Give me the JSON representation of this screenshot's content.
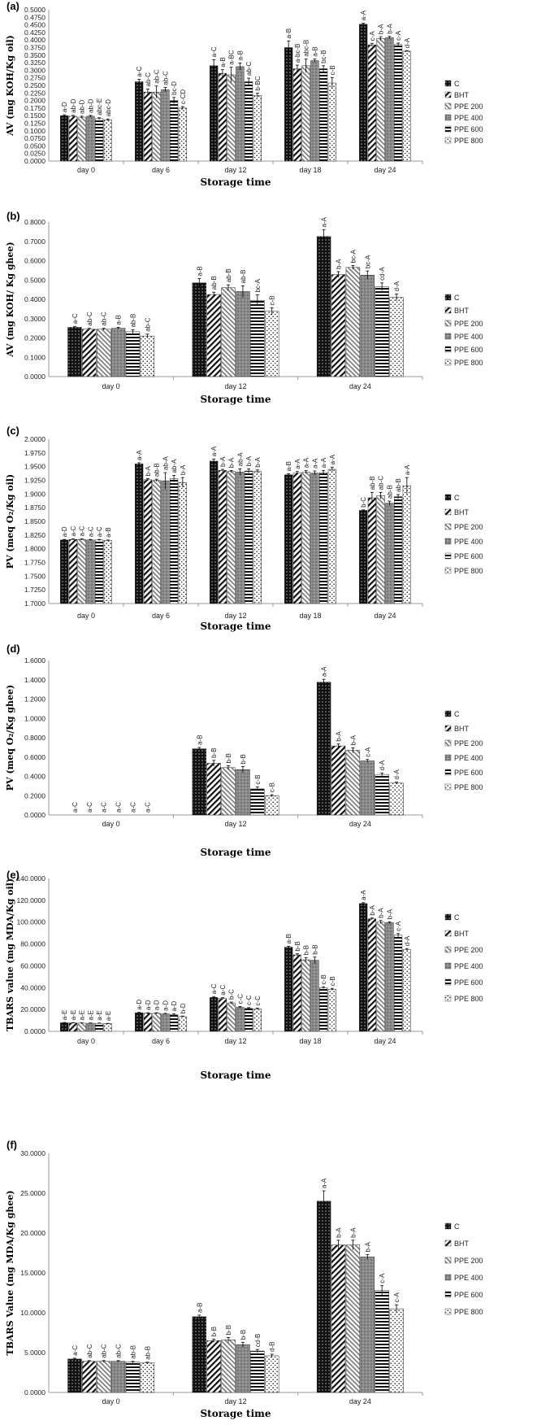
{
  "legend": [
    "C",
    "BHT",
    "PPE 200",
    "PPE 400",
    "PPE 600",
    "PPE 800"
  ],
  "chart_data": [
    {
      "panel": "(a)",
      "type": "bar",
      "ylabel": "AV (mg KOH/Kg oil)",
      "xlabel": "Storage time",
      "categories": [
        "day 0",
        "day 6",
        "day 12",
        "day 18",
        "day 24"
      ],
      "ylim": [
        0,
        0.5
      ],
      "ystep": 0.025,
      "decimals": 4,
      "series": [
        {
          "name": "C",
          "values": [
            0.15,
            0.262,
            0.315,
            0.375,
            0.452
          ],
          "err": [
            0.003,
            0.008,
            0.02,
            0.022,
            0.004
          ],
          "labels": [
            "a-D",
            "a-C",
            "a-C",
            "a-B",
            "a-A"
          ]
        },
        {
          "name": "BHT",
          "values": [
            0.148,
            0.228,
            0.29,
            0.305,
            0.384
          ],
          "err": [
            0.003,
            0.01,
            0.012,
            0.012,
            0.005
          ],
          "labels": [
            "ab-D",
            "ab-C",
            "a-B",
            "a-bc-B",
            "c-A"
          ]
        },
        {
          "name": "PPE 200",
          "values": [
            0.145,
            0.228,
            0.285,
            0.315,
            0.405
          ],
          "err": [
            0.003,
            0.02,
            0.025,
            0.022,
            0.006
          ],
          "labels": [
            "ab-D",
            "ab-C",
            "a-BC",
            "abc-B",
            "b-A"
          ]
        },
        {
          "name": "PPE 400",
          "values": [
            0.148,
            0.236,
            0.312,
            0.332,
            0.408
          ],
          "err": [
            0.003,
            0.007,
            0.012,
            0.005,
            0.004
          ],
          "labels": [
            "ab-D",
            "ab-C",
            "a-B",
            "a-B",
            "b-A"
          ]
        },
        {
          "name": "PPE 600",
          "values": [
            0.14,
            0.2,
            0.262,
            0.305,
            0.385
          ],
          "err": [
            0.003,
            0.01,
            0.012,
            0.01,
            0.005
          ],
          "labels": [
            "abc-E",
            "bc-D",
            "ab-C",
            "bc-B",
            "c-A"
          ]
        },
        {
          "name": "PPE 800",
          "values": [
            0.136,
            0.175,
            0.217,
            0.258,
            0.363
          ],
          "err": [
            0.003,
            0.005,
            0.007,
            0.018,
            0.002
          ],
          "labels": [
            "abc-D",
            "c-CD",
            "b-BC",
            "c-B",
            "d-A"
          ]
        }
      ]
    },
    {
      "panel": "(b)",
      "type": "bar",
      "ylabel": "AV (mg KOH/ Kg ghee)",
      "xlabel": "Storage time",
      "categories": [
        "day 0",
        "day 12",
        "day 24"
      ],
      "ylim": [
        0,
        0.8
      ],
      "ystep": 0.1,
      "decimals": 4,
      "series": [
        {
          "name": "C",
          "values": [
            0.255,
            0.485,
            0.725
          ],
          "err": [
            0.005,
            0.022,
            0.035
          ],
          "labels": [
            "a-C",
            "a-B",
            "a-A"
          ]
        },
        {
          "name": "BHT",
          "values": [
            0.245,
            0.425,
            0.528
          ],
          "err": [
            0.005,
            0.012,
            0.015
          ],
          "labels": [
            "ab-C",
            "ab-B",
            "b-A"
          ]
        },
        {
          "name": "PPE 200",
          "values": [
            0.245,
            0.46,
            0.565
          ],
          "err": [
            0.005,
            0.015,
            0.01
          ],
          "labels": [
            "ab-C",
            "ab-B",
            "bc-A"
          ]
        },
        {
          "name": "PPE 400",
          "values": [
            0.25,
            0.44,
            0.525
          ],
          "err": [
            0.005,
            0.03,
            0.022
          ],
          "labels": [
            "a-B",
            "ab-B",
            "bc-A"
          ]
        },
        {
          "name": "PPE 600",
          "values": [
            0.232,
            0.395,
            0.465
          ],
          "err": [
            0.01,
            0.028,
            0.02
          ],
          "labels": [
            "ab-B",
            "bc-A",
            "cd-A"
          ]
        },
        {
          "name": "PPE 800",
          "values": [
            0.21,
            0.338,
            0.41
          ],
          "err": [
            0.01,
            0.018,
            0.018
          ],
          "labels": [
            "ab-C",
            "c-B",
            "d-A"
          ]
        }
      ]
    },
    {
      "panel": "(c)",
      "type": "bar",
      "ylabel": "PV (meq O₂/Kg oil)",
      "xlabel": "Storage time",
      "categories": [
        "day 0",
        "day 6",
        "day 12",
        "day 18",
        "day 24"
      ],
      "ylim": [
        1.7,
        2.0
      ],
      "ystep": 0.025,
      "decimals": 4,
      "series": [
        {
          "name": "C",
          "values": [
            1.816,
            1.955,
            1.96,
            1.935,
            1.87
          ],
          "err": [
            0.001,
            0.002,
            0.004,
            0.002,
            0.001
          ],
          "labels": [
            "a-D",
            "a-A",
            "a-A",
            "a-B",
            "b-C"
          ]
        },
        {
          "name": "BHT",
          "values": [
            1.817,
            1.926,
            1.943,
            1.938,
            1.893
          ],
          "err": [
            0.001,
            0.002,
            0.002,
            0.003,
            0.01
          ],
          "labels": [
            "a-C",
            "b-A",
            "b-A",
            "a-A",
            "ab-B"
          ]
        },
        {
          "name": "PPE 200",
          "values": [
            1.817,
            1.925,
            1.941,
            1.94,
            1.897
          ],
          "err": [
            0.001,
            0.002,
            0.002,
            0.003,
            0.006
          ],
          "labels": [
            "a-C",
            "ab-B",
            "b-A",
            "a-A",
            "ab-C"
          ]
        },
        {
          "name": "PPE 400",
          "values": [
            1.816,
            1.924,
            1.94,
            1.938,
            1.883
          ],
          "err": [
            0.001,
            0.015,
            0.006,
            0.004,
            0.004
          ],
          "labels": [
            "a-C",
            "ab-A",
            "ab-A",
            "a-A",
            "ab-B"
          ]
        },
        {
          "name": "PPE 600",
          "values": [
            1.816,
            1.928,
            1.942,
            1.939,
            1.895
          ],
          "err": [
            0.001,
            0.006,
            0.004,
            0.004,
            0.004
          ],
          "labels": [
            "a-C",
            "ab-A",
            "b-A",
            "a-A",
            "ab-B"
          ]
        },
        {
          "name": "PPE 800",
          "values": [
            1.815,
            1.921,
            1.941,
            1.945,
            1.915
          ],
          "err": [
            0.001,
            0.009,
            0.003,
            0.004,
            0.015
          ],
          "labels": [
            "a-B",
            "b-A",
            "b-A",
            "a-A",
            "a-A"
          ]
        }
      ]
    },
    {
      "panel": "(d)",
      "type": "bar",
      "ylabel": "PV (meq O₂/Kg ghee)",
      "xlabel": "Storage time",
      "categories": [
        "day 0",
        "day 12",
        "day 24"
      ],
      "ylim": [
        0,
        1.6
      ],
      "ystep": 0.2,
      "decimals": 4,
      "series": [
        {
          "name": "C",
          "values": [
            0,
            0.685,
            1.375
          ],
          "err": [
            0,
            0.015,
            0.03
          ],
          "labels": [
            "a-C",
            "a-B",
            "a-A"
          ]
        },
        {
          "name": "BHT",
          "values": [
            0,
            0.535,
            0.715
          ],
          "err": [
            0,
            0.03,
            0.02
          ],
          "labels": [
            "a-C",
            "b-B",
            "b-A"
          ]
        },
        {
          "name": "PPE 200",
          "values": [
            0,
            0.49,
            0.67
          ],
          "err": [
            0,
            0.02,
            0.025
          ],
          "labels": [
            "a-C",
            "b-B",
            "b-A"
          ]
        },
        {
          "name": "PPE 400",
          "values": [
            0,
            0.47,
            0.56
          ],
          "err": [
            0,
            0.03,
            0.015
          ],
          "labels": [
            "a-C",
            "b-B",
            "c-A"
          ]
        },
        {
          "name": "PPE 600",
          "values": [
            0,
            0.27,
            0.42
          ],
          "err": [
            0,
            0.02,
            0.015
          ],
          "labels": [
            "a-C",
            "c-B",
            "d-A"
          ]
        },
        {
          "name": "PPE 800",
          "values": [
            0,
            0.2,
            0.33
          ],
          "err": [
            0,
            0.01,
            0.01
          ],
          "labels": [
            "a-C",
            "c-B",
            "d-A"
          ]
        }
      ]
    },
    {
      "panel": "(e)",
      "type": "bar",
      "ylabel": "TBARS value (mg MDA/Kg oil)",
      "xlabel": "Storage time",
      "categories": [
        "day 0",
        "day 6",
        "day 12",
        "day 18",
        "day 24"
      ],
      "ylim": [
        0,
        140
      ],
      "ystep": 20,
      "decimals": 4,
      "series": [
        {
          "name": "C",
          "values": [
            7.8,
            17.0,
            31.0,
            77.0,
            117.0
          ],
          "err": [
            0.3,
            0.4,
            0.8,
            0.8,
            0.8
          ],
          "labels": [
            "a-E",
            "a-D",
            "a-C",
            "a-B",
            "a-A"
          ]
        },
        {
          "name": "BHT",
          "values": [
            7.7,
            16.5,
            30.0,
            70.0,
            103.0
          ],
          "err": [
            0.3,
            0.5,
            0.8,
            1.0,
            0.8
          ],
          "labels": [
            "a-E",
            "a-D",
            "a-C",
            "b-B",
            "b-A"
          ]
        },
        {
          "name": "PPE 200",
          "values": [
            7.5,
            16.5,
            26.0,
            65.5,
            100.0
          ],
          "err": [
            0.3,
            0.5,
            0.8,
            2.0,
            1.5
          ],
          "labels": [
            "a-E",
            "a-D",
            "b-C",
            "b-B",
            "b-A"
          ]
        },
        {
          "name": "PPE 400",
          "values": [
            7.4,
            16.0,
            22.0,
            65.0,
            99.5
          ],
          "err": [
            0.3,
            0.5,
            0.8,
            3.0,
            0.8
          ],
          "labels": [
            "a-E",
            "a-D",
            "c-C",
            "b-B",
            "b-A"
          ]
        },
        {
          "name": "PPE 600",
          "values": [
            7.3,
            15.5,
            21.0,
            40.0,
            88.0
          ],
          "err": [
            0.3,
            0.5,
            0.7,
            0.8,
            1.5
          ],
          "labels": [
            "a-E",
            "a-D",
            "c-C",
            "c-B",
            "c-A"
          ]
        },
        {
          "name": "PPE 800",
          "values": [
            7.0,
            13.5,
            20.5,
            38.5,
            75.0
          ],
          "err": [
            0.3,
            0.5,
            0.7,
            0.8,
            0.8
          ],
          "labels": [
            "a-E",
            "b-D",
            "c-C",
            "c-B",
            "d-A"
          ]
        }
      ]
    },
    {
      "panel": "(f)",
      "type": "bar",
      "ylabel": "TBARS Value (mg MDA/Kg ghee)",
      "xlabel": "Storage time",
      "categories": [
        "day 0",
        "day 12",
        "day 24"
      ],
      "ylim": [
        0,
        30
      ],
      "ystep": 5,
      "decimals": 4,
      "series": [
        {
          "name": "C",
          "values": [
            4.2,
            9.5,
            24.0
          ],
          "err": [
            0.1,
            0.2,
            1.3
          ],
          "labels": [
            "a-C",
            "a-B",
            "a-A"
          ]
        },
        {
          "name": "BHT",
          "values": [
            3.9,
            6.5,
            18.5
          ],
          "err": [
            0.1,
            0.2,
            0.6
          ],
          "labels": [
            "ab-C",
            "b-B",
            "b-A"
          ]
        },
        {
          "name": "PPE 200",
          "values": [
            3.9,
            6.6,
            18.5
          ],
          "err": [
            0.1,
            0.3,
            0.6
          ],
          "labels": [
            "ab-C",
            "b-B",
            "b-A"
          ]
        },
        {
          "name": "PPE 400",
          "values": [
            3.9,
            6.0,
            17.0
          ],
          "err": [
            0.1,
            0.3,
            0.3
          ],
          "labels": [
            "ab-C",
            "b-B",
            "b-A"
          ]
        },
        {
          "name": "PPE 600",
          "values": [
            3.8,
            5.2,
            12.8
          ],
          "err": [
            0.1,
            0.2,
            0.6
          ],
          "labels": [
            "ab-B",
            "cd-B",
            "c-A"
          ]
        },
        {
          "name": "PPE 800",
          "values": [
            3.7,
            4.6,
            10.5
          ],
          "err": [
            0.1,
            0.2,
            0.5
          ],
          "labels": [
            "ab-B",
            "d-B",
            "c-A"
          ]
        }
      ]
    }
  ]
}
